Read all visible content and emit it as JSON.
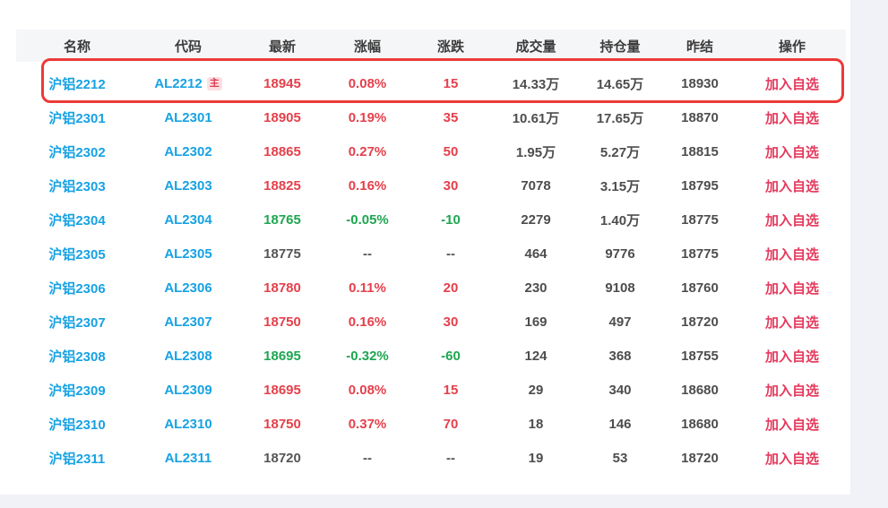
{
  "page": {
    "background": "#f1f2f7",
    "panel_background": "#ffffff",
    "header_background": "#f5f6f8"
  },
  "colors": {
    "link_blue": "#17a2e3",
    "up_red": "#e5404b",
    "down_green": "#1ea651",
    "neutral": "#4d4d4d",
    "action_red": "#e5395c",
    "annotation_red": "#ed3a38"
  },
  "annotation": {
    "type": "red-highlight-box",
    "highlighted_row_index": 0
  },
  "table": {
    "columns": [
      {
        "key": "name",
        "label": "名称"
      },
      {
        "key": "code",
        "label": "代码"
      },
      {
        "key": "last",
        "label": "最新"
      },
      {
        "key": "change_pct",
        "label": "涨幅"
      },
      {
        "key": "change",
        "label": "涨跌"
      },
      {
        "key": "volume",
        "label": "成交量"
      },
      {
        "key": "open_interest",
        "label": "持仓量"
      },
      {
        "key": "prev_settle",
        "label": "昨结"
      },
      {
        "key": "action",
        "label": "操作"
      }
    ],
    "rows": [
      {
        "name": "沪铝2212",
        "code": "AL2212",
        "badge": "主",
        "last": "18945",
        "change_pct": "0.08%",
        "change": "15",
        "volume": "14.33万",
        "open_interest": "14.65万",
        "prev_settle": "18930",
        "action": "加入自选",
        "trend": "up",
        "highlighted": true
      },
      {
        "name": "沪铝2301",
        "code": "AL2301",
        "badge": "",
        "last": "18905",
        "change_pct": "0.19%",
        "change": "35",
        "volume": "10.61万",
        "open_interest": "17.65万",
        "prev_settle": "18870",
        "action": "加入自选",
        "trend": "up",
        "highlighted": false
      },
      {
        "name": "沪铝2302",
        "code": "AL2302",
        "badge": "",
        "last": "18865",
        "change_pct": "0.27%",
        "change": "50",
        "volume": "1.95万",
        "open_interest": "5.27万",
        "prev_settle": "18815",
        "action": "加入自选",
        "trend": "up",
        "highlighted": false
      },
      {
        "name": "沪铝2303",
        "code": "AL2303",
        "badge": "",
        "last": "18825",
        "change_pct": "0.16%",
        "change": "30",
        "volume": "7078",
        "open_interest": "3.15万",
        "prev_settle": "18795",
        "action": "加入自选",
        "trend": "up",
        "highlighted": false
      },
      {
        "name": "沪铝2304",
        "code": "AL2304",
        "badge": "",
        "last": "18765",
        "change_pct": "-0.05%",
        "change": "-10",
        "volume": "2279",
        "open_interest": "1.40万",
        "prev_settle": "18775",
        "action": "加入自选",
        "trend": "down",
        "highlighted": false
      },
      {
        "name": "沪铝2305",
        "code": "AL2305",
        "badge": "",
        "last": "18775",
        "change_pct": "--",
        "change": "--",
        "volume": "464",
        "open_interest": "9776",
        "prev_settle": "18775",
        "action": "加入自选",
        "trend": "flat",
        "highlighted": false
      },
      {
        "name": "沪铝2306",
        "code": "AL2306",
        "badge": "",
        "last": "18780",
        "change_pct": "0.11%",
        "change": "20",
        "volume": "230",
        "open_interest": "9108",
        "prev_settle": "18760",
        "action": "加入自选",
        "trend": "up",
        "highlighted": false
      },
      {
        "name": "沪铝2307",
        "code": "AL2307",
        "badge": "",
        "last": "18750",
        "change_pct": "0.16%",
        "change": "30",
        "volume": "169",
        "open_interest": "497",
        "prev_settle": "18720",
        "action": "加入自选",
        "trend": "up",
        "highlighted": false
      },
      {
        "name": "沪铝2308",
        "code": "AL2308",
        "badge": "",
        "last": "18695",
        "change_pct": "-0.32%",
        "change": "-60",
        "volume": "124",
        "open_interest": "368",
        "prev_settle": "18755",
        "action": "加入自选",
        "trend": "down",
        "highlighted": false
      },
      {
        "name": "沪铝2309",
        "code": "AL2309",
        "badge": "",
        "last": "18695",
        "change_pct": "0.08%",
        "change": "15",
        "volume": "29",
        "open_interest": "340",
        "prev_settle": "18680",
        "action": "加入自选",
        "trend": "up",
        "highlighted": false
      },
      {
        "name": "沪铝2310",
        "code": "AL2310",
        "badge": "",
        "last": "18750",
        "change_pct": "0.37%",
        "change": "70",
        "volume": "18",
        "open_interest": "146",
        "prev_settle": "18680",
        "action": "加入自选",
        "trend": "up",
        "highlighted": false
      },
      {
        "name": "沪铝2311",
        "code": "AL2311",
        "badge": "",
        "last": "18720",
        "change_pct": "--",
        "change": "--",
        "volume": "19",
        "open_interest": "53",
        "prev_settle": "18720",
        "action": "加入自选",
        "trend": "flat",
        "highlighted": false
      }
    ]
  }
}
